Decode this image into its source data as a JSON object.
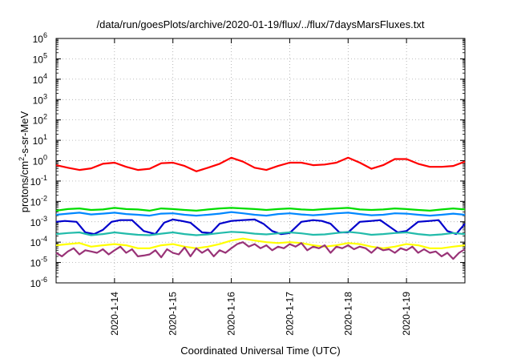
{
  "chart_data": {
    "type": "line",
    "title": "/data/run/goesPlots/archive/2020-01-19/flux/../flux/7daysMarsFluxes.txt",
    "xlabel": "Coordinated Universal Time (UTC)",
    "ylabel": {
      "base": "protons/cm",
      "sup": "2",
      "rest": "-s-sr-MeV"
    },
    "x_unit": "day",
    "xlim": [
      13.0,
      20.0
    ],
    "y_scale": "log",
    "ylim_exponents": [
      -6,
      6
    ],
    "y_tick_base": "10",
    "y_tick_exponents": [
      "-6",
      "-5",
      "-4",
      "-3",
      "-2",
      "-1",
      "0",
      "1",
      "2",
      "3",
      "4",
      "5",
      "6"
    ],
    "x_ticks": [
      {
        "value": 14,
        "label": "2020-1-14"
      },
      {
        "value": 15,
        "label": "2020-1-15"
      },
      {
        "value": 16,
        "label": "2020-1-16"
      },
      {
        "value": 17,
        "label": "2020-1-17"
      },
      {
        "value": 18,
        "label": "2020-1-18"
      },
      {
        "value": 19,
        "label": "2020-1-19"
      }
    ],
    "grid": true,
    "legend": "none",
    "series": [
      {
        "color": "#ff0000",
        "x": [
          13.0,
          13.2,
          13.4,
          13.6,
          13.8,
          14.0,
          14.2,
          14.4,
          14.6,
          14.8,
          15.0,
          15.2,
          15.4,
          15.6,
          15.8,
          16.0,
          16.2,
          16.4,
          16.6,
          16.8,
          17.0,
          17.2,
          17.4,
          17.6,
          17.8,
          18.0,
          18.2,
          18.4,
          18.6,
          18.8,
          19.0,
          19.2,
          19.4,
          19.6,
          19.8,
          20.0
        ],
        "y": [
          0.6,
          0.45,
          0.35,
          0.42,
          0.7,
          0.8,
          0.5,
          0.35,
          0.4,
          0.75,
          0.8,
          0.55,
          0.3,
          0.45,
          0.7,
          1.4,
          0.9,
          0.45,
          0.35,
          0.55,
          0.8,
          0.8,
          0.6,
          0.65,
          0.8,
          1.4,
          0.8,
          0.4,
          0.6,
          1.2,
          1.2,
          0.7,
          0.5,
          0.5,
          0.55,
          0.9
        ]
      },
      {
        "color": "#00dd00",
        "x": [
          13.0,
          13.2,
          13.4,
          13.6,
          13.8,
          14.0,
          14.2,
          14.4,
          14.6,
          14.8,
          15.0,
          15.2,
          15.4,
          15.6,
          15.8,
          16.0,
          16.2,
          16.4,
          16.6,
          16.8,
          17.0,
          17.2,
          17.4,
          17.6,
          17.8,
          18.0,
          18.2,
          18.4,
          18.6,
          18.8,
          19.0,
          19.2,
          19.4,
          19.6,
          19.8,
          20.0
        ],
        "y": [
          0.0035,
          0.0042,
          0.0045,
          0.0038,
          0.004,
          0.0048,
          0.0042,
          0.004,
          0.0035,
          0.0045,
          0.0042,
          0.0038,
          0.0035,
          0.004,
          0.0045,
          0.0048,
          0.0045,
          0.0042,
          0.0038,
          0.0042,
          0.0045,
          0.004,
          0.0038,
          0.0042,
          0.0045,
          0.0048,
          0.004,
          0.0038,
          0.004,
          0.0045,
          0.0042,
          0.0038,
          0.0035,
          0.004,
          0.0045,
          0.004
        ]
      },
      {
        "color": "#0088ff",
        "x": [
          13.0,
          13.2,
          13.4,
          13.6,
          13.8,
          14.0,
          14.2,
          14.4,
          14.6,
          14.8,
          15.0,
          15.2,
          15.4,
          15.6,
          15.8,
          16.0,
          16.2,
          16.4,
          16.6,
          16.8,
          17.0,
          17.2,
          17.4,
          17.6,
          17.8,
          18.0,
          18.2,
          18.4,
          18.6,
          18.8,
          19.0,
          19.2,
          19.4,
          19.6,
          19.8,
          20.0
        ],
        "y": [
          0.0022,
          0.0025,
          0.0028,
          0.0023,
          0.0025,
          0.0028,
          0.0024,
          0.0022,
          0.002,
          0.0025,
          0.0026,
          0.0022,
          0.002,
          0.0022,
          0.0025,
          0.003,
          0.0026,
          0.0022,
          0.002,
          0.0024,
          0.0026,
          0.0023,
          0.0021,
          0.0023,
          0.0026,
          0.0028,
          0.0024,
          0.0021,
          0.0022,
          0.0026,
          0.0025,
          0.0022,
          0.002,
          0.0022,
          0.0025,
          0.0022
        ]
      },
      {
        "color": "#0000cc",
        "x": [
          13.0,
          13.15,
          13.35,
          13.5,
          13.65,
          13.8,
          13.95,
          14.1,
          14.3,
          14.5,
          14.7,
          14.85,
          15.0,
          15.15,
          15.3,
          15.5,
          15.65,
          15.8,
          16.0,
          16.2,
          16.4,
          16.55,
          16.7,
          16.85,
          17.0,
          17.2,
          17.4,
          17.55,
          17.7,
          17.85,
          18.0,
          18.2,
          18.4,
          18.55,
          18.7,
          18.85,
          19.0,
          19.2,
          19.4,
          19.55,
          19.7,
          19.85,
          20.0
        ],
        "y": [
          0.001,
          0.0011,
          0.001,
          0.0003,
          0.00025,
          0.0004,
          0.001,
          0.0012,
          0.0012,
          0.00035,
          0.00025,
          0.0009,
          0.0013,
          0.0011,
          0.0009,
          0.0003,
          0.00028,
          0.0008,
          0.0011,
          0.0012,
          0.0013,
          0.0008,
          0.00035,
          0.00025,
          0.00028,
          0.001,
          0.0012,
          0.0011,
          0.0008,
          0.0003,
          0.0003,
          0.001,
          0.0011,
          0.0012,
          0.0006,
          0.0003,
          0.00035,
          0.001,
          0.0011,
          0.0012,
          0.00035,
          0.00025,
          0.0008
        ]
      },
      {
        "color": "#22bbaa",
        "x": [
          13.0,
          13.2,
          13.4,
          13.6,
          13.8,
          14.0,
          14.2,
          14.4,
          14.6,
          14.8,
          15.0,
          15.2,
          15.4,
          15.6,
          15.8,
          16.0,
          16.2,
          16.4,
          16.6,
          16.8,
          17.0,
          17.2,
          17.4,
          17.6,
          17.8,
          18.0,
          18.2,
          18.4,
          18.6,
          18.8,
          19.0,
          19.2,
          19.4,
          19.6,
          19.8,
          20.0
        ],
        "y": [
          0.00025,
          0.00028,
          0.0003,
          0.00022,
          0.00025,
          0.0003,
          0.00026,
          0.00023,
          0.00022,
          0.00026,
          0.0003,
          0.00025,
          0.00022,
          0.00024,
          0.00028,
          0.00032,
          0.0003,
          0.00026,
          0.00024,
          0.00027,
          0.0003,
          0.00027,
          0.00023,
          0.00024,
          0.00028,
          0.00032,
          0.00028,
          0.00023,
          0.00025,
          0.00028,
          0.0003,
          0.00025,
          0.00022,
          0.00024,
          0.00028,
          0.00025
        ]
      },
      {
        "color": "#ffff00",
        "x": [
          13.0,
          13.2,
          13.4,
          13.6,
          13.8,
          14.0,
          14.2,
          14.4,
          14.6,
          14.8,
          15.0,
          15.2,
          15.4,
          15.6,
          15.8,
          16.0,
          16.2,
          16.4,
          16.6,
          16.8,
          17.0,
          17.2,
          17.4,
          17.6,
          17.8,
          18.0,
          18.2,
          18.4,
          18.6,
          18.8,
          19.0,
          19.2,
          19.4,
          19.6,
          19.8,
          20.0
        ],
        "y": [
          7e-05,
          8e-05,
          9e-05,
          6e-05,
          7e-05,
          8e-05,
          7e-05,
          5e-05,
          5e-05,
          7e-05,
          8e-05,
          6e-05,
          5e-05,
          6e-05,
          8e-05,
          0.00012,
          0.00015,
          0.00012,
          0.0001,
          9e-05,
          0.0001,
          9e-05,
          7e-05,
          6e-05,
          7e-05,
          9e-05,
          8e-05,
          6e-05,
          5e-05,
          6e-05,
          8e-05,
          7e-05,
          5e-05,
          5e-05,
          6e-05,
          7e-05
        ]
      },
      {
        "color": "#993377",
        "x": [
          13.0,
          13.1,
          13.2,
          13.3,
          13.4,
          13.5,
          13.6,
          13.7,
          13.8,
          13.9,
          14.0,
          14.1,
          14.2,
          14.3,
          14.4,
          14.5,
          14.6,
          14.7,
          14.8,
          14.9,
          15.0,
          15.1,
          15.2,
          15.3,
          15.4,
          15.5,
          15.6,
          15.7,
          15.8,
          15.9,
          16.0,
          16.1,
          16.2,
          16.3,
          16.4,
          16.5,
          16.6,
          16.7,
          16.8,
          16.9,
          17.0,
          17.1,
          17.2,
          17.3,
          17.4,
          17.5,
          17.6,
          17.7,
          17.8,
          17.9,
          18.0,
          18.1,
          18.2,
          18.3,
          18.4,
          18.5,
          18.6,
          18.7,
          18.8,
          18.9,
          19.0,
          19.1,
          19.2,
          19.3,
          19.4,
          19.5,
          19.6,
          19.7,
          19.8,
          19.9,
          20.0
        ],
        "y": [
          3e-05,
          2e-05,
          3.5e-05,
          5e-05,
          2.5e-05,
          4e-05,
          3.5e-05,
          3e-05,
          4.5e-05,
          2.5e-05,
          4e-05,
          6e-05,
          3e-05,
          4.5e-05,
          2e-05,
          2.2e-05,
          2.5e-05,
          4e-05,
          1.8e-05,
          4.5e-05,
          3e-05,
          2.5e-05,
          5.5e-05,
          2e-05,
          5e-05,
          3e-05,
          4.5e-05,
          2e-05,
          4e-05,
          3e-05,
          5e-05,
          8e-05,
          0.0001,
          6e-05,
          8e-05,
          5e-05,
          7e-05,
          4e-05,
          6e-05,
          5e-05,
          8e-05,
          6e-05,
          9e-05,
          4e-05,
          6e-05,
          5e-05,
          7e-05,
          3e-05,
          6e-05,
          5e-05,
          7e-05,
          4.5e-05,
          6e-05,
          5e-05,
          3e-05,
          5.5e-05,
          4e-05,
          4.5e-05,
          3e-05,
          5e-05,
          4e-05,
          6e-05,
          3e-05,
          4.5e-05,
          3e-05,
          3.5e-05,
          2e-05,
          3e-05,
          1.5e-05,
          3e-05,
          4.5e-05
        ]
      }
    ]
  }
}
